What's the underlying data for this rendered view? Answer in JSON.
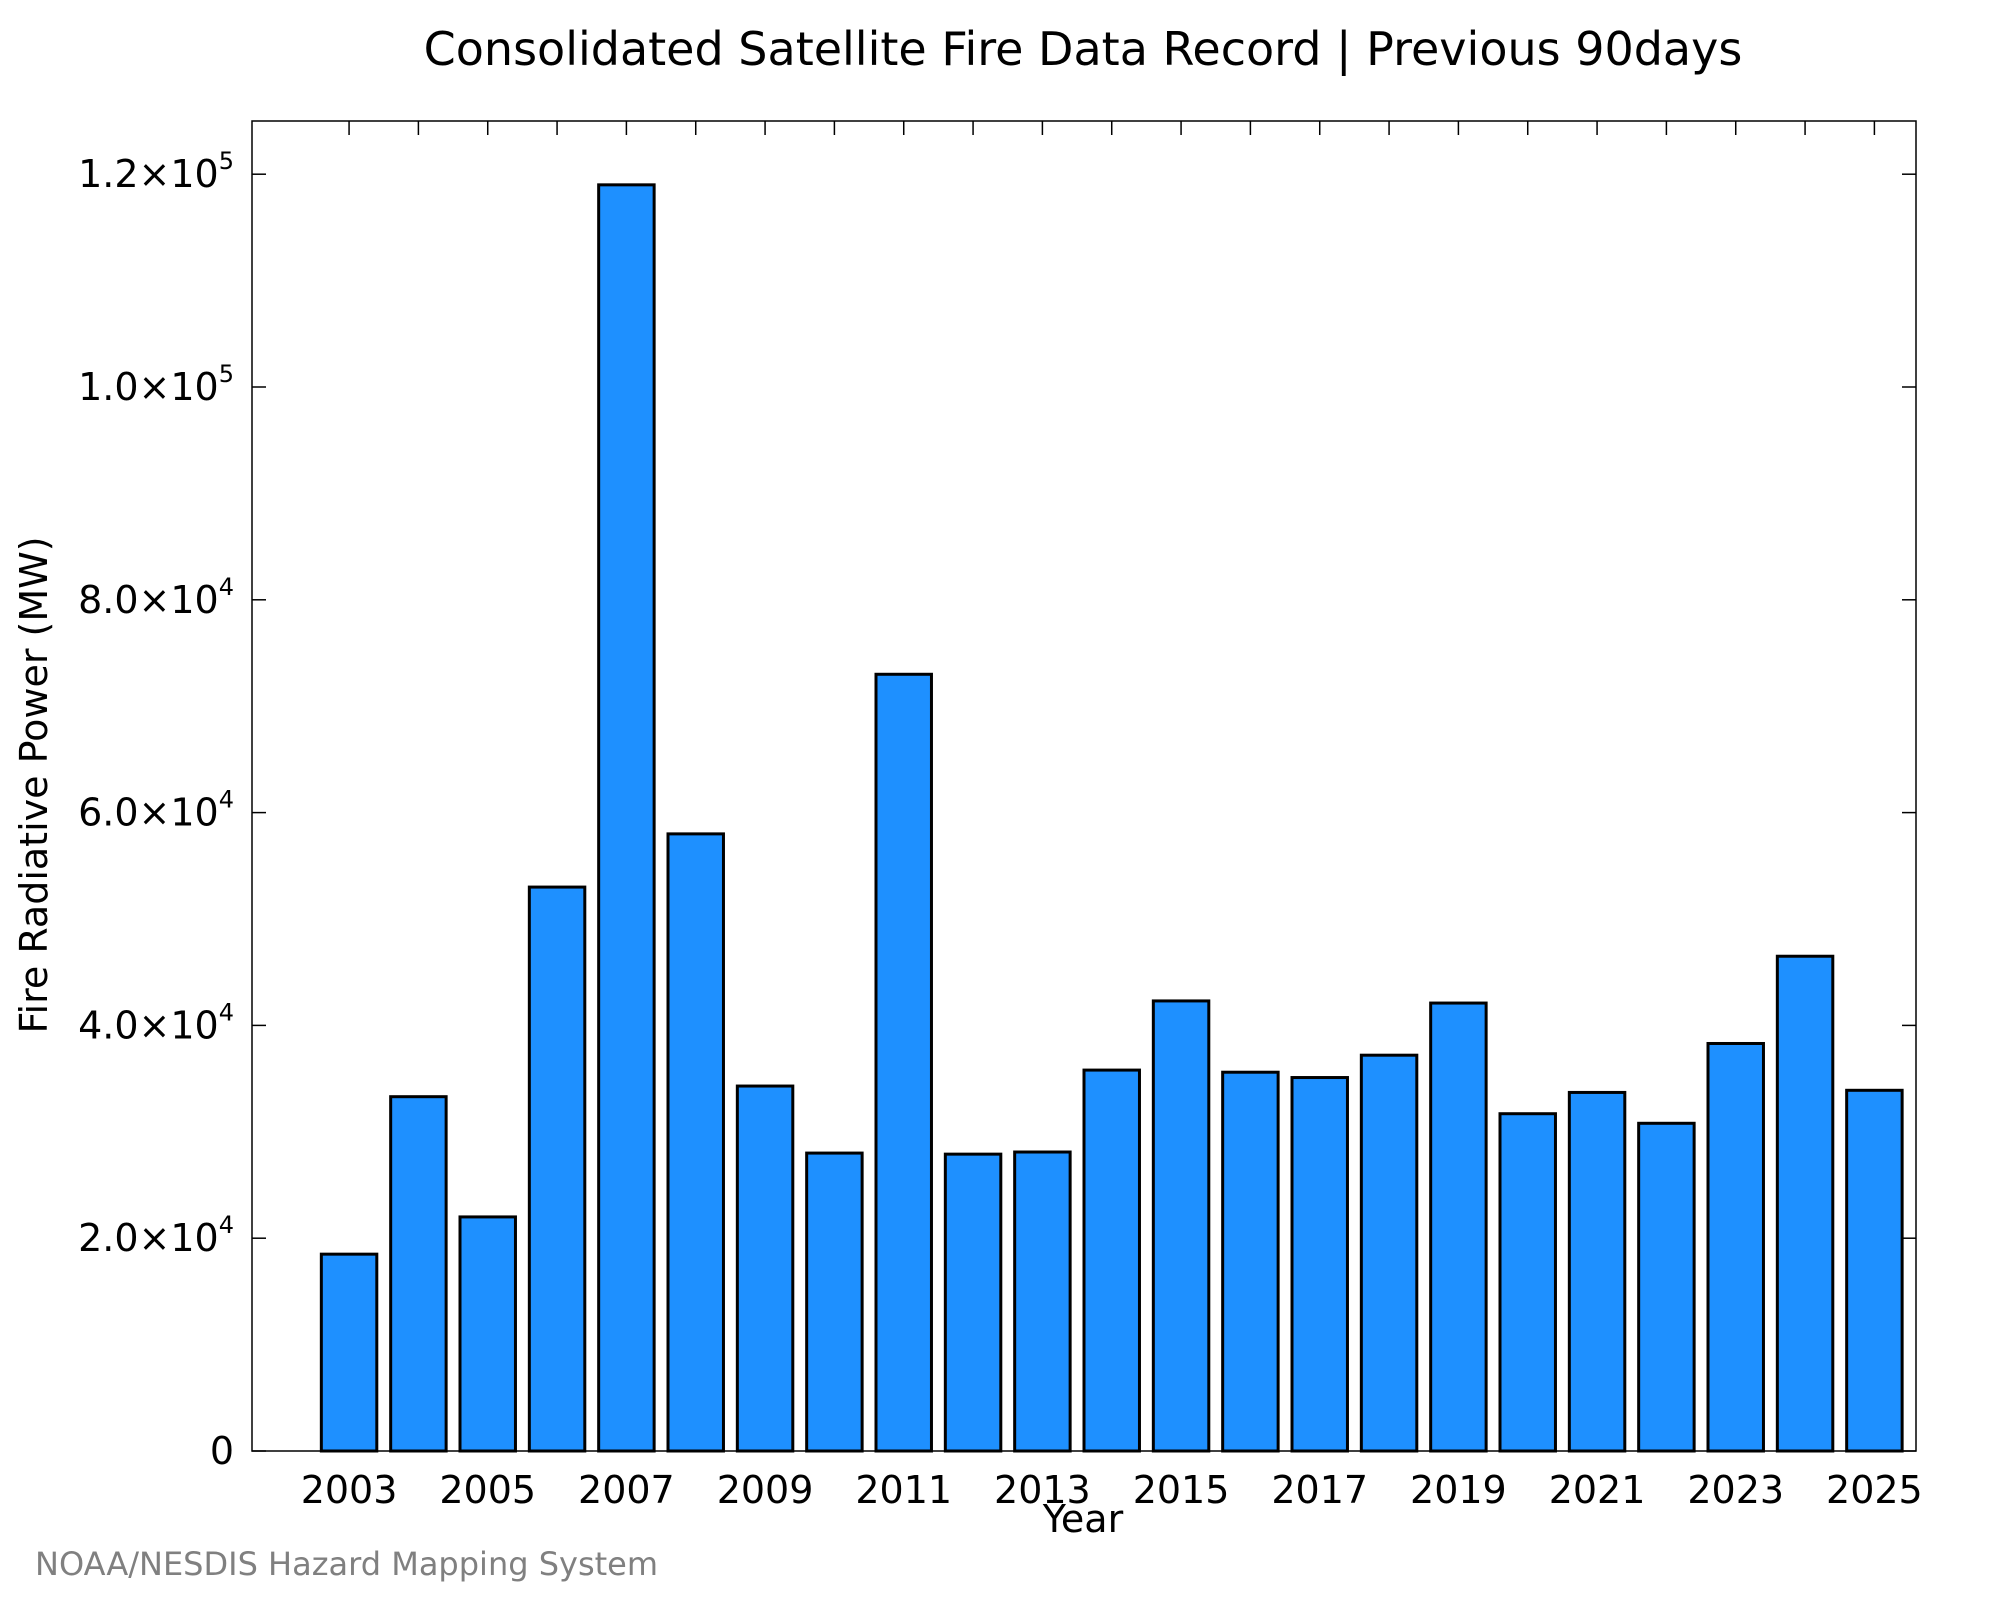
{
  "chart_data": {
    "type": "bar",
    "title": "Consolidated Satellite Fire Data Record | Previous 90days",
    "xlabel": "Year",
    "ylabel": "Fire Radiative Power (MW)",
    "credit": "NOAA/NESDIS Hazard Mapping System",
    "categories": [
      "2003",
      "2004",
      "2005",
      "2006",
      "2007",
      "2008",
      "2009",
      "2010",
      "2011",
      "2012",
      "2013",
      "2014",
      "2015",
      "2016",
      "2017",
      "2018",
      "2019",
      "2020",
      "2021",
      "2022",
      "2023",
      "2024",
      "2025"
    ],
    "values": [
      18500,
      33300,
      22000,
      53000,
      119000,
      58000,
      34300,
      28000,
      73000,
      27900,
      28100,
      35800,
      42300,
      35600,
      35100,
      37200,
      42100,
      31700,
      33700,
      30800,
      38300,
      46500,
      33900
    ],
    "x_tick_labels": [
      "2003",
      "2005",
      "2007",
      "2009",
      "2011",
      "2013",
      "2015",
      "2017",
      "2019",
      "2021",
      "2023",
      "2025"
    ],
    "y_ticks": [
      {
        "value": 0,
        "mantissa": "0",
        "exponent": ""
      },
      {
        "value": 20000,
        "mantissa": "2.0×10",
        "exponent": "4"
      },
      {
        "value": 40000,
        "mantissa": "4.0×10",
        "exponent": "4"
      },
      {
        "value": 60000,
        "mantissa": "6.0×10",
        "exponent": "4"
      },
      {
        "value": 80000,
        "mantissa": "8.0×10",
        "exponent": "4"
      },
      {
        "value": 100000,
        "mantissa": "1.0×10",
        "exponent": "5"
      },
      {
        "value": 120000,
        "mantissa": "1.2×10",
        "exponent": "5"
      }
    ],
    "ylim": [
      0,
      125000
    ],
    "xlim": [
      2001.6,
      2025.6
    ],
    "grid": false,
    "colors": {
      "bar_fill": "#1e90ff",
      "bar_stroke": "#000000",
      "credit": "#808080"
    }
  }
}
